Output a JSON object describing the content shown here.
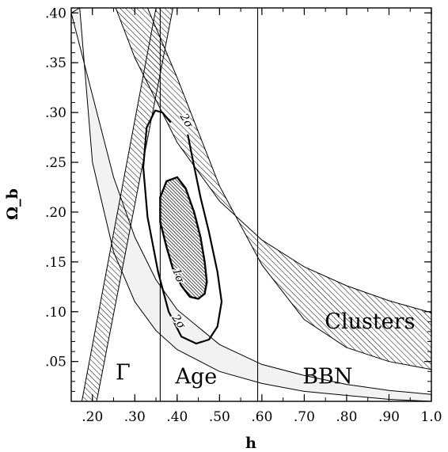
{
  "chart_data": {
    "type": "area",
    "xlabel": "h",
    "ylabel": "Ω_b",
    "xlim": [
      0.15,
      1.0
    ],
    "ylim": [
      0.01,
      0.405
    ],
    "x_ticks": [
      ".20",
      ".30",
      ".40",
      ".50",
      ".60",
      ".70",
      ".80",
      ".90",
      "1.0"
    ],
    "x_tick_values": [
      0.2,
      0.3,
      0.4,
      0.5,
      0.6,
      0.7,
      0.8,
      0.9,
      1.0
    ],
    "y_ticks": [
      ".05",
      ".10",
      ".15",
      ".20",
      ".25",
      ".30",
      ".35",
      ".40"
    ],
    "y_tick_values": [
      0.05,
      0.1,
      0.15,
      0.2,
      0.25,
      0.3,
      0.35,
      0.4
    ],
    "grid": false,
    "colors": {
      "bbn_fill": "#f2f2f2",
      "hatch": "#000000",
      "contour_1sigma_fill": "#000000"
    },
    "regions": [
      {
        "name": "BBN",
        "style": "light-grey band",
        "upper_boundary": [
          [
            0.15,
            0.4
          ],
          [
            0.25,
            0.235
          ],
          [
            0.3,
            0.175
          ],
          [
            0.35,
            0.132
          ],
          [
            0.4,
            0.102
          ],
          [
            0.5,
            0.067
          ],
          [
            0.6,
            0.047
          ],
          [
            0.7,
            0.036
          ],
          [
            0.8,
            0.027
          ],
          [
            0.9,
            0.021
          ],
          [
            1.0,
            0.017
          ]
        ],
        "lower_boundary": [
          [
            0.17,
            0.405
          ],
          [
            0.2,
            0.25
          ],
          [
            0.25,
            0.16
          ],
          [
            0.3,
            0.11
          ],
          [
            0.35,
            0.081
          ],
          [
            0.4,
            0.062
          ],
          [
            0.5,
            0.04
          ],
          [
            0.6,
            0.028
          ],
          [
            0.7,
            0.02
          ],
          [
            0.8,
            0.016
          ],
          [
            0.9,
            0.012
          ],
          [
            1.0,
            0.01
          ]
        ]
      },
      {
        "name": "Clusters",
        "style": "hatched band",
        "upper_boundary": [
          [
            0.255,
            0.405
          ],
          [
            0.3,
            0.355
          ],
          [
            0.4,
            0.27
          ],
          [
            0.5,
            0.211
          ],
          [
            0.6,
            0.172
          ],
          [
            0.7,
            0.145
          ],
          [
            0.8,
            0.126
          ],
          [
            0.9,
            0.111
          ],
          [
            1.0,
            0.099
          ]
        ],
        "lower_boundary": [
          [
            0.33,
            0.405
          ],
          [
            0.4,
            0.335
          ],
          [
            0.5,
            0.226
          ],
          [
            0.6,
            0.147
          ],
          [
            0.7,
            0.092
          ],
          [
            0.8,
            0.064
          ],
          [
            0.9,
            0.05
          ],
          [
            1.0,
            0.042
          ]
        ]
      },
      {
        "name": "Γ",
        "style": "hatched diagonal band",
        "polygon": [
          [
            0.175,
            0.01
          ],
          [
            0.21,
            0.01
          ],
          [
            0.39,
            0.405
          ],
          [
            0.35,
            0.405
          ]
        ]
      },
      {
        "name": "Age",
        "style": "vertical lines",
        "lines_x": [
          0.36,
          0.59
        ]
      }
    ],
    "contours": [
      {
        "label": "1σ",
        "style": "filled",
        "points": [
          [
            0.4,
            0.235
          ],
          [
            0.42,
            0.224
          ],
          [
            0.44,
            0.2
          ],
          [
            0.455,
            0.175
          ],
          [
            0.465,
            0.15
          ],
          [
            0.47,
            0.13
          ],
          [
            0.465,
            0.118
          ],
          [
            0.45,
            0.113
          ],
          [
            0.43,
            0.115
          ],
          [
            0.41,
            0.126
          ],
          [
            0.39,
            0.143
          ],
          [
            0.375,
            0.165
          ],
          [
            0.36,
            0.19
          ],
          [
            0.36,
            0.215
          ],
          [
            0.375,
            0.231
          ]
        ]
      },
      {
        "label": "2σ",
        "style": "line",
        "points": [
          [
            0.425,
            0.278
          ],
          [
            0.438,
            0.25
          ],
          [
            0.455,
            0.215
          ],
          [
            0.475,
            0.18
          ],
          [
            0.495,
            0.14
          ],
          [
            0.505,
            0.11
          ],
          [
            0.495,
            0.085
          ],
          [
            0.475,
            0.072
          ],
          [
            0.445,
            0.068
          ],
          [
            0.41,
            0.075
          ],
          [
            0.38,
            0.1
          ],
          [
            0.355,
            0.14
          ],
          [
            0.33,
            0.195
          ],
          [
            0.32,
            0.245
          ],
          [
            0.328,
            0.285
          ],
          [
            0.348,
            0.302
          ],
          [
            0.365,
            0.3
          ],
          [
            0.385,
            0.29
          ]
        ]
      }
    ],
    "annotations": [
      {
        "text": "Clusters",
        "x": 0.855,
        "y": 0.083
      },
      {
        "text": "BBN",
        "x": 0.755,
        "y": 0.028
      },
      {
        "text": "Age",
        "x": 0.445,
        "y": 0.028
      },
      {
        "text": "Γ",
        "x": 0.272,
        "y": 0.032
      },
      {
        "text": "2σ",
        "x": 0.415,
        "y": 0.29,
        "angle": 60
      },
      {
        "text": "1σ",
        "x": 0.395,
        "y": 0.135,
        "angle": 70
      },
      {
        "text": "2σ",
        "x": 0.397,
        "y": 0.088,
        "angle": 55
      }
    ]
  }
}
